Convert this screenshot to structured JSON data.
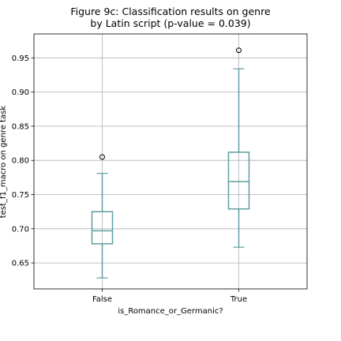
{
  "chart_data": {
    "type": "boxplot",
    "title_lines": [
      "Figure 9c: Classification results on genre",
      "by Latin script (p-value = 0.039)"
    ],
    "xlabel": "is_Romance_or_Germanic?",
    "ylabel": "test_f1_macro on genre task",
    "categories": [
      "False",
      "True"
    ],
    "ylim": [
      0.612,
      0.985
    ],
    "yticks": [
      0.65,
      0.7,
      0.75,
      0.8,
      0.85,
      0.9,
      0.95
    ],
    "ytick_labels": [
      "0.65",
      "0.70",
      "0.75",
      "0.80",
      "0.85",
      "0.90",
      "0.95"
    ],
    "grid": true,
    "box_color": "#5f9ea0",
    "boxes": [
      {
        "category": "False",
        "whisker_low": 0.628,
        "q1": 0.678,
        "median": 0.697,
        "q3": 0.725,
        "whisker_high": 0.781,
        "outliers": [
          0.805
        ]
      },
      {
        "category": "True",
        "whisker_low": 0.673,
        "q1": 0.729,
        "median": 0.769,
        "q3": 0.812,
        "whisker_high": 0.934,
        "outliers": [
          0.961
        ]
      }
    ]
  }
}
